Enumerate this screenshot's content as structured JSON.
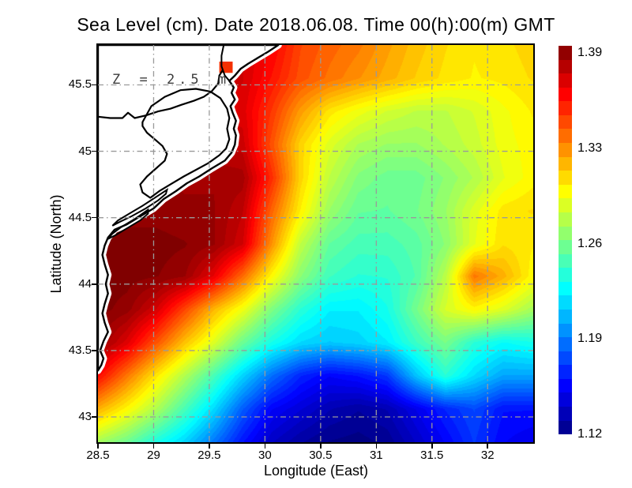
{
  "title": "Sea Level (cm). Date 2018.06.08. Time 00(h):00(m) GMT",
  "annotation": "Z = 2.5 m",
  "axes": {
    "xlabel": "Longitude (East)",
    "ylabel": "Latitude (North)",
    "x_ticks": [
      28.5,
      29,
      29.5,
      30,
      30.5,
      31,
      31.5,
      32
    ],
    "y_ticks": [
      43,
      43.5,
      44,
      44.5,
      45,
      45.5
    ],
    "xlim": [
      28.5,
      32.41
    ],
    "ylim": [
      42.81,
      45.8
    ],
    "grid_color": "#9a9a9a"
  },
  "colorbar": {
    "min": 1.12,
    "max": 1.39,
    "labels": [
      "1.39",
      "1.33",
      "1.26",
      "1.19",
      "1.12"
    ],
    "segments": 28,
    "colormap": [
      {
        "t": 0,
        "color": "#000083"
      },
      {
        "t": 0.125,
        "color": "#0000ff"
      },
      {
        "t": 0.375,
        "color": "#00ffff"
      },
      {
        "t": 0.625,
        "color": "#ffff00"
      },
      {
        "t": 0.875,
        "color": "#ff0000"
      },
      {
        "t": 1,
        "color": "#800000"
      }
    ]
  },
  "chart_data": {
    "type": "heatmap",
    "variable": "sea level",
    "vmin": 1.12,
    "vmax": 1.39,
    "x": [
      28.5,
      28.76,
      29.02,
      29.28,
      29.54,
      29.8,
      30.06,
      30.32,
      30.58,
      30.84,
      31.1,
      31.36,
      31.62,
      31.88,
      32.14,
      32.4
    ],
    "y": [
      45.8,
      45.55,
      45.3,
      45.05,
      44.8,
      44.55,
      44.3,
      44.06,
      43.81,
      43.56,
      43.31,
      43.06,
      42.81
    ],
    "values": [
      [
        1.37,
        1.37,
        1.37,
        1.37,
        1.37,
        1.368,
        1.358,
        1.338,
        1.33,
        1.324,
        1.314,
        1.305,
        1.298,
        1.293,
        1.296,
        1.3
      ],
      [
        1.37,
        1.37,
        1.37,
        1.37,
        1.37,
        1.368,
        1.352,
        1.335,
        1.326,
        1.318,
        1.31,
        1.302,
        1.296,
        1.292,
        1.294,
        1.298
      ],
      [
        1.368,
        1.368,
        1.368,
        1.368,
        1.368,
        1.365,
        1.342,
        1.315,
        1.295,
        1.285,
        1.277,
        1.272,
        1.272,
        1.278,
        1.286,
        1.293
      ],
      [
        1.372,
        1.372,
        1.372,
        1.372,
        1.372,
        1.37,
        1.335,
        1.3,
        1.28,
        1.267,
        1.262,
        1.262,
        1.268,
        1.275,
        1.285,
        1.29
      ],
      [
        1.382,
        1.382,
        1.382,
        1.382,
        1.382,
        1.38,
        1.345,
        1.3,
        1.272,
        1.256,
        1.25,
        1.25,
        1.258,
        1.268,
        1.282,
        1.29
      ],
      [
        1.385,
        1.385,
        1.385,
        1.383,
        1.383,
        1.373,
        1.33,
        1.292,
        1.262,
        1.248,
        1.247,
        1.252,
        1.262,
        1.28,
        1.295,
        1.298
      ],
      [
        1.39,
        1.39,
        1.39,
        1.388,
        1.383,
        1.368,
        1.318,
        1.272,
        1.247,
        1.24,
        1.24,
        1.245,
        1.258,
        1.282,
        1.297,
        1.293
      ],
      [
        1.39,
        1.39,
        1.388,
        1.383,
        1.362,
        1.328,
        1.29,
        1.258,
        1.238,
        1.232,
        1.233,
        1.243,
        1.27,
        1.325,
        1.31,
        1.29
      ],
      [
        1.39,
        1.385,
        1.368,
        1.338,
        1.308,
        1.285,
        1.255,
        1.232,
        1.218,
        1.218,
        1.227,
        1.252,
        1.278,
        1.29,
        1.28,
        1.265
      ],
      [
        1.385,
        1.365,
        1.335,
        1.305,
        1.28,
        1.25,
        1.227,
        1.212,
        1.207,
        1.21,
        1.217,
        1.237,
        1.253,
        1.232,
        1.222,
        1.227
      ],
      [
        1.355,
        1.325,
        1.295,
        1.268,
        1.24,
        1.21,
        1.183,
        1.163,
        1.153,
        1.158,
        1.168,
        1.205,
        1.232,
        1.212,
        1.197,
        1.197
      ],
      [
        1.31,
        1.29,
        1.268,
        1.24,
        1.212,
        1.178,
        1.153,
        1.143,
        1.133,
        1.128,
        1.133,
        1.148,
        1.163,
        1.173,
        1.158,
        1.158
      ],
      [
        1.265,
        1.25,
        1.228,
        1.21,
        1.185,
        1.158,
        1.138,
        1.128,
        1.122,
        1.12,
        1.124,
        1.138,
        1.153,
        1.168,
        1.153,
        1.148
      ]
    ],
    "land": {
      "fill": "#ffffff",
      "coast_color": "#000000",
      "outer": [
        [
          28.5,
          45.8
        ],
        [
          30.12,
          45.8
        ],
        [
          30.03,
          45.75
        ],
        [
          29.95,
          45.71
        ],
        [
          29.85,
          45.66
        ],
        [
          29.78,
          45.62
        ],
        [
          29.73,
          45.57
        ],
        [
          29.68,
          45.53
        ],
        [
          29.72,
          45.48
        ],
        [
          29.7,
          45.44
        ],
        [
          29.73,
          45.39
        ],
        [
          29.69,
          45.34
        ],
        [
          29.71,
          45.29
        ],
        [
          29.74,
          45.23
        ],
        [
          29.72,
          45.17
        ],
        [
          29.74,
          45.12
        ],
        [
          29.73,
          45.05
        ],
        [
          29.7,
          44.99
        ],
        [
          29.64,
          44.93
        ],
        [
          29.52,
          44.87
        ],
        [
          29.41,
          44.81
        ],
        [
          29.3,
          44.76
        ],
        [
          29.2,
          44.7
        ],
        [
          29.09,
          44.64
        ],
        [
          29.0,
          44.57
        ],
        [
          28.88,
          44.51
        ],
        [
          28.76,
          44.45
        ],
        [
          28.65,
          44.41
        ],
        [
          28.59,
          44.35
        ],
        [
          28.56,
          44.29
        ],
        [
          28.54,
          44.22
        ],
        [
          28.56,
          44.15
        ],
        [
          28.59,
          44.07
        ],
        [
          28.57,
          44.0
        ],
        [
          28.59,
          43.93
        ],
        [
          28.56,
          43.85
        ],
        [
          28.54,
          43.78
        ],
        [
          28.56,
          43.71
        ],
        [
          28.59,
          43.64
        ],
        [
          28.55,
          43.57
        ],
        [
          28.52,
          43.5
        ],
        [
          28.55,
          43.44
        ],
        [
          28.53,
          43.39
        ],
        [
          28.5,
          43.35
        ]
      ],
      "lagoon": [
        [
          28.9,
          45.22
        ],
        [
          28.98,
          45.34
        ],
        [
          29.1,
          45.41
        ],
        [
          29.24,
          45.46
        ],
        [
          29.38,
          45.47
        ],
        [
          29.51,
          45.45
        ],
        [
          29.6,
          45.4
        ],
        [
          29.66,
          45.32
        ],
        [
          29.68,
          45.25
        ],
        [
          29.66,
          45.17
        ],
        [
          29.68,
          45.09
        ],
        [
          29.65,
          45.02
        ],
        [
          29.59,
          44.97
        ],
        [
          29.49,
          44.91
        ],
        [
          29.38,
          44.86
        ],
        [
          29.27,
          44.81
        ],
        [
          29.15,
          44.75
        ],
        [
          29.05,
          44.7
        ],
        [
          28.97,
          44.65
        ],
        [
          28.9,
          44.69
        ],
        [
          28.88,
          44.75
        ],
        [
          28.94,
          44.81
        ],
        [
          29.02,
          44.87
        ],
        [
          29.1,
          44.93
        ],
        [
          29.12,
          44.98
        ],
        [
          29.08,
          45.04
        ],
        [
          29.01,
          45.09
        ],
        [
          28.94,
          45.14
        ],
        [
          28.9,
          45.19
        ]
      ],
      "beak1": [
        [
          29.12,
          44.71
        ],
        [
          29.01,
          44.65
        ],
        [
          28.9,
          44.59
        ],
        [
          28.78,
          44.53
        ],
        [
          28.68,
          44.48
        ],
        [
          28.63,
          44.44
        ],
        [
          28.7,
          44.47
        ],
        [
          28.8,
          44.51
        ],
        [
          28.93,
          44.57
        ],
        [
          29.04,
          44.63
        ],
        [
          29.11,
          44.68
        ]
      ],
      "beak2": [
        [
          28.95,
          44.56
        ],
        [
          28.83,
          44.49
        ],
        [
          28.71,
          44.43
        ],
        [
          28.63,
          44.38
        ],
        [
          28.59,
          44.34
        ],
        [
          28.66,
          44.37
        ],
        [
          28.76,
          44.42
        ],
        [
          28.88,
          44.48
        ],
        [
          28.95,
          44.53
        ]
      ],
      "river": [
        [
          28.5,
          45.26
        ],
        [
          28.61,
          45.25
        ],
        [
          28.72,
          45.25
        ],
        [
          28.77,
          45.29
        ],
        [
          28.83,
          45.25
        ],
        [
          28.93,
          45.27
        ],
        [
          29.04,
          45.3
        ],
        [
          29.15,
          45.32
        ],
        [
          29.25,
          45.35
        ],
        [
          29.36,
          45.38
        ],
        [
          29.45,
          45.41
        ],
        [
          29.52,
          45.45
        ],
        [
          29.58,
          45.51
        ],
        [
          29.59,
          45.57
        ],
        [
          29.62,
          45.61
        ]
      ],
      "channel": [
        [
          29.63,
          45.8
        ],
        [
          29.61,
          45.72
        ],
        [
          29.61,
          45.64
        ],
        [
          29.64,
          45.57
        ],
        [
          29.68,
          45.53
        ]
      ],
      "delta_cell": [
        29.59,
        45.59,
        29.71,
        45.675
      ],
      "delta_cell_color": "#f43000"
    }
  }
}
